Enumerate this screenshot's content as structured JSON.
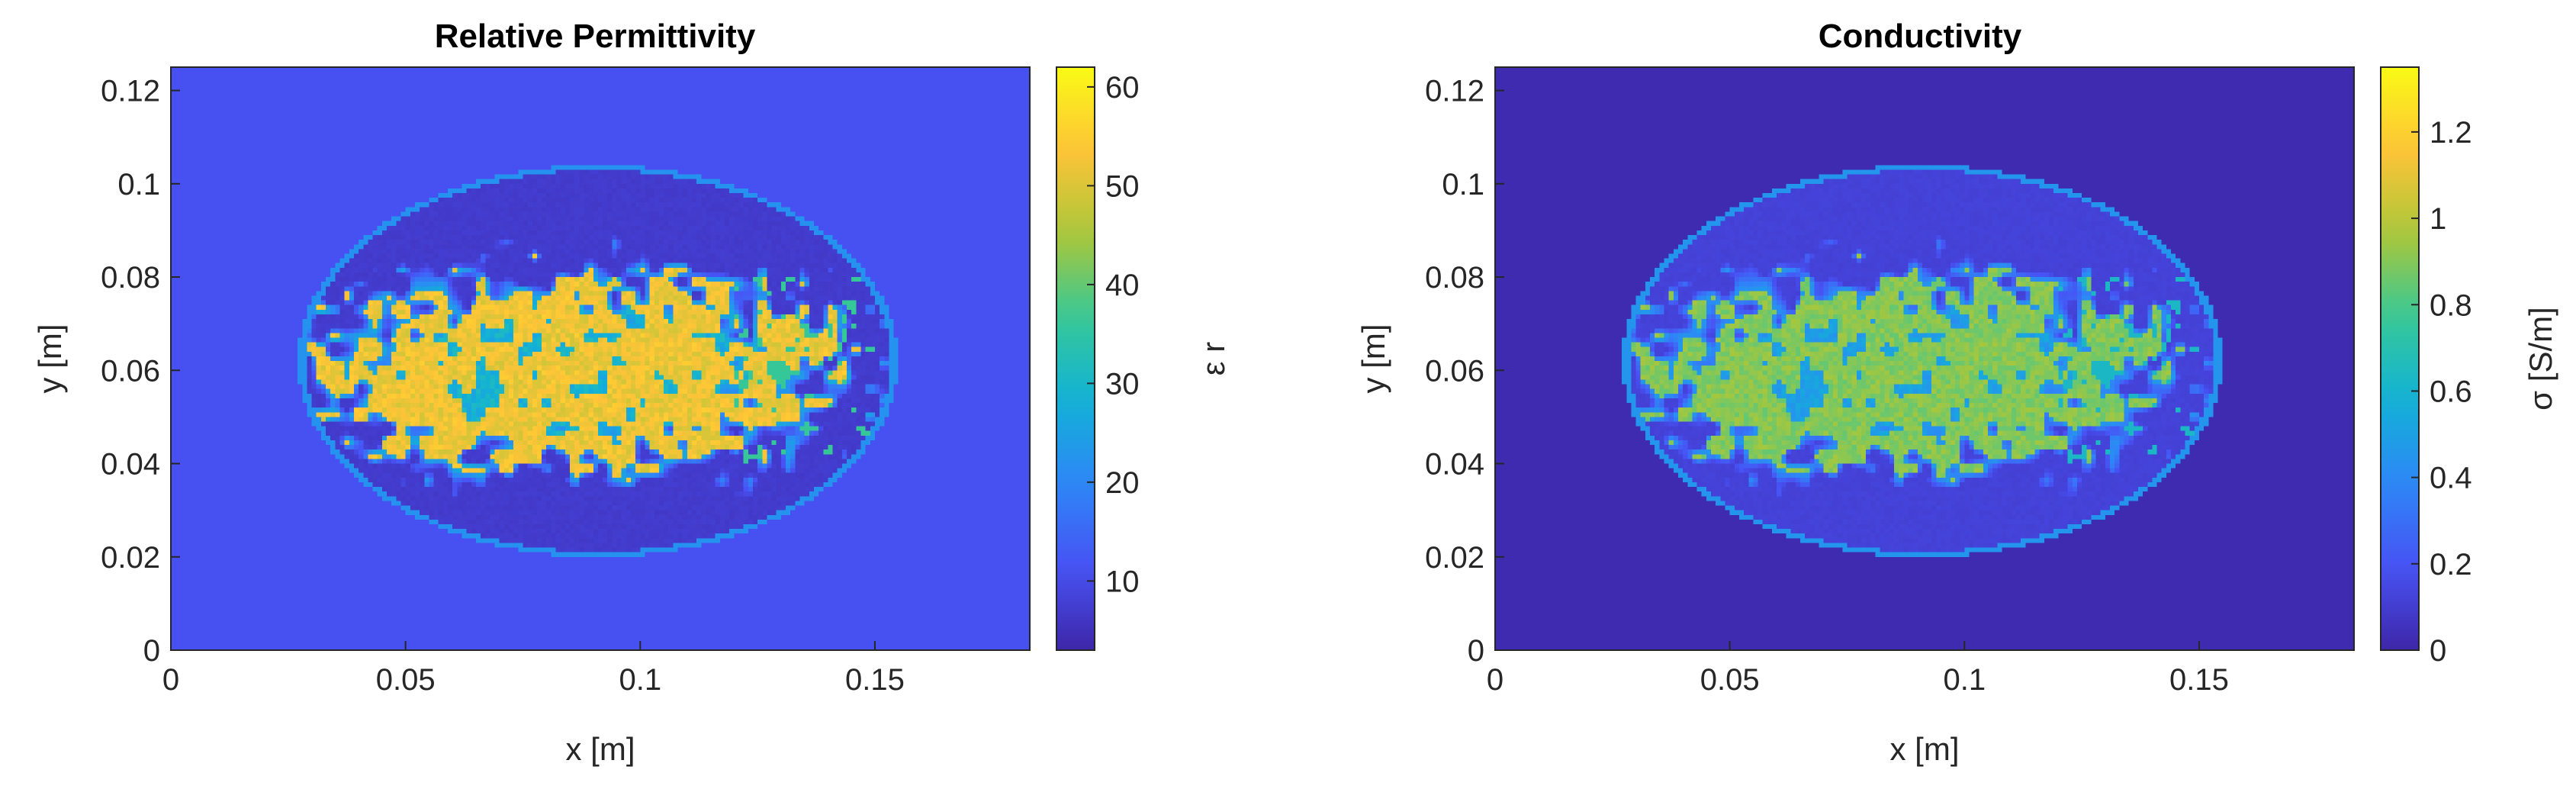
{
  "chart_data": [
    {
      "type": "heatmap",
      "title": "Relative Permittivity",
      "xlabel": "x [m]",
      "ylabel": "y [m]",
      "xlim": [
        0,
        0.183
      ],
      "ylim": [
        0,
        0.125
      ],
      "xticks": [
        "0",
        "0.05",
        "0.1",
        "0.15"
      ],
      "xtick_values": [
        0,
        0.05,
        0.1,
        0.15
      ],
      "yticks": [
        "0",
        "0.02",
        "0.04",
        "0.06",
        "0.08",
        "0.1",
        "0.12"
      ],
      "ytick_values": [
        0,
        0.02,
        0.04,
        0.06,
        0.08,
        0.1,
        0.12
      ],
      "colorbar": {
        "label": "ε r",
        "range": [
          3,
          62
        ],
        "ticks": [
          "10",
          "20",
          "30",
          "40",
          "50",
          "60"
        ],
        "tick_values": [
          10,
          20,
          30,
          40,
          50,
          60
        ]
      },
      "colormap": "parula",
      "values": {
        "background": 11,
        "ellipse_boundary": 22,
        "ellipse_interior": 7,
        "core": 52,
        "core_center": [
          0.087,
          0.06
        ],
        "core_extent": [
          0.05,
          0.018
        ],
        "ellipse_center": [
          0.091,
          0.062
        ],
        "ellipse_semi_axes": [
          0.064,
          0.042
        ]
      }
    },
    {
      "type": "heatmap",
      "title": "Conductivity",
      "xlabel": "x [m]",
      "ylabel": "y [m]",
      "xlim": [
        0,
        0.183
      ],
      "ylim": [
        0,
        0.125
      ],
      "xticks": [
        "0",
        "0.05",
        "0.1",
        "0.15"
      ],
      "xtick_values": [
        0,
        0.05,
        0.1,
        0.15
      ],
      "yticks": [
        "0",
        "0.02",
        "0.04",
        "0.06",
        "0.08",
        "0.1",
        "0.12"
      ],
      "ytick_values": [
        0,
        0.02,
        0.04,
        0.06,
        0.08,
        0.1,
        0.12
      ],
      "colorbar": {
        "label": "σ [S/m]",
        "range": [
          0,
          1.35
        ],
        "ticks": [
          "0",
          "0.2",
          "0.4",
          "0.6",
          "0.8",
          "1",
          "1.2"
        ],
        "tick_values": [
          0,
          0.2,
          0.4,
          0.6,
          0.8,
          1.0,
          1.2
        ]
      },
      "colormap": "parula",
      "values": {
        "background": 0.02,
        "ellipse_boundary": 0.45,
        "ellipse_interior": 0.12,
        "core": 0.9,
        "core_center": [
          0.087,
          0.06
        ],
        "core_extent": [
          0.05,
          0.018
        ],
        "ellipse_center": [
          0.091,
          0.062
        ],
        "ellipse_semi_axes": [
          0.064,
          0.042
        ]
      }
    }
  ]
}
